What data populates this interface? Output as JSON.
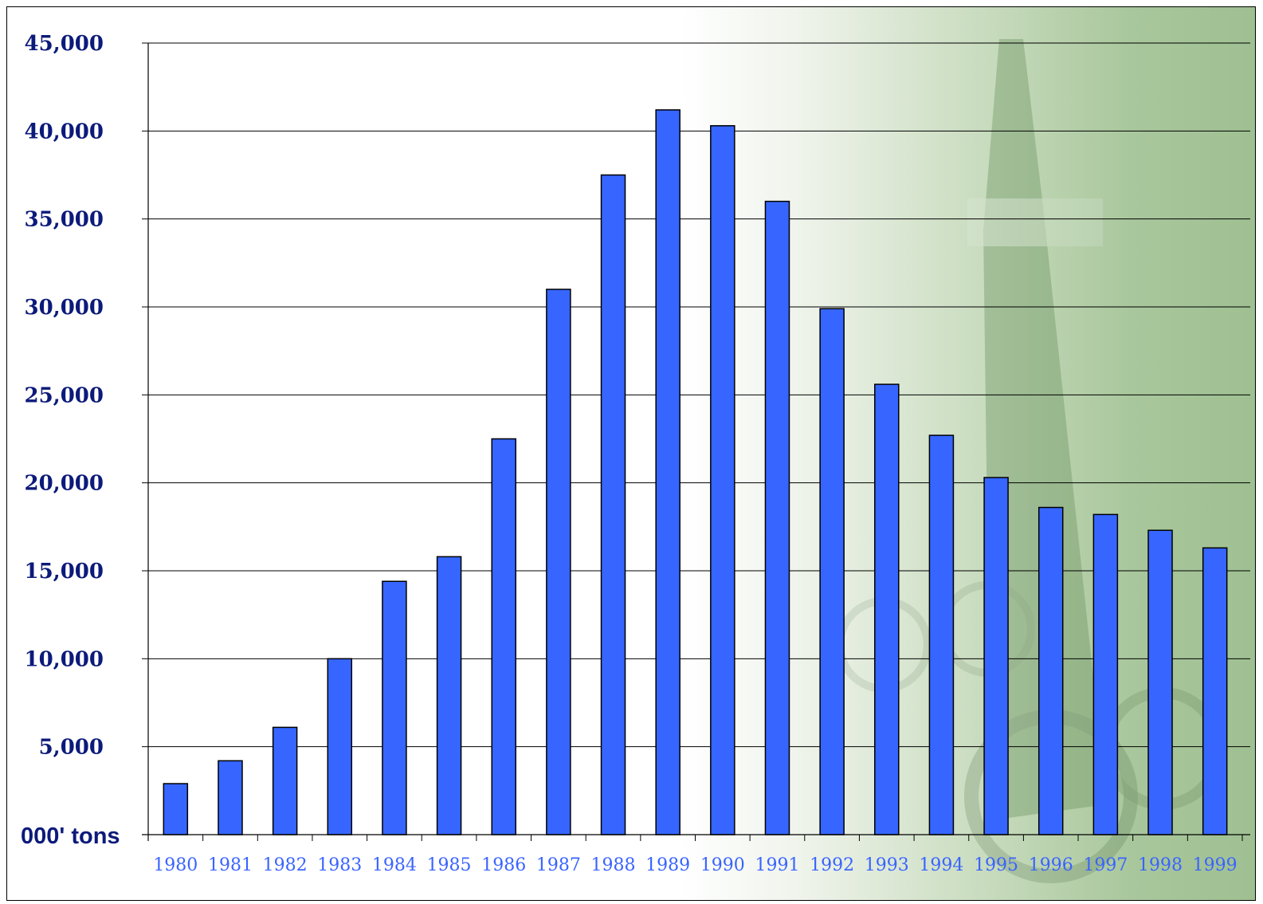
{
  "chart_data": {
    "type": "bar",
    "title": "",
    "xlabel": "",
    "ylabel": "000' tons",
    "ylim": [
      0,
      45000
    ],
    "yticks": [
      "5,000",
      "10,000",
      "15,000",
      "20,000",
      "25,000",
      "30,000",
      "35,000",
      "40,000",
      "45,000"
    ],
    "y_zero_label": "000' tons",
    "grid": true,
    "categories": [
      "1980",
      "1981",
      "1982",
      "1983",
      "1984",
      "1985",
      "1986",
      "1987",
      "1988",
      "1989",
      "1990",
      "1991",
      "1992",
      "1993",
      "1994",
      "1995",
      "1996",
      "1997",
      "1998",
      "1999"
    ],
    "values": [
      2900,
      4200,
      6100,
      10000,
      14400,
      15800,
      22500,
      31000,
      37500,
      41200,
      40300,
      36000,
      29900,
      25600,
      22700,
      20300,
      18600,
      18200,
      17300,
      16300
    ],
    "colors": {
      "bar": "#3666ff",
      "bar_outline": "#000000",
      "ytick_text": "#0c1a7a",
      "xtick_text": "#3a64ff",
      "gridline": "#000000"
    }
  }
}
